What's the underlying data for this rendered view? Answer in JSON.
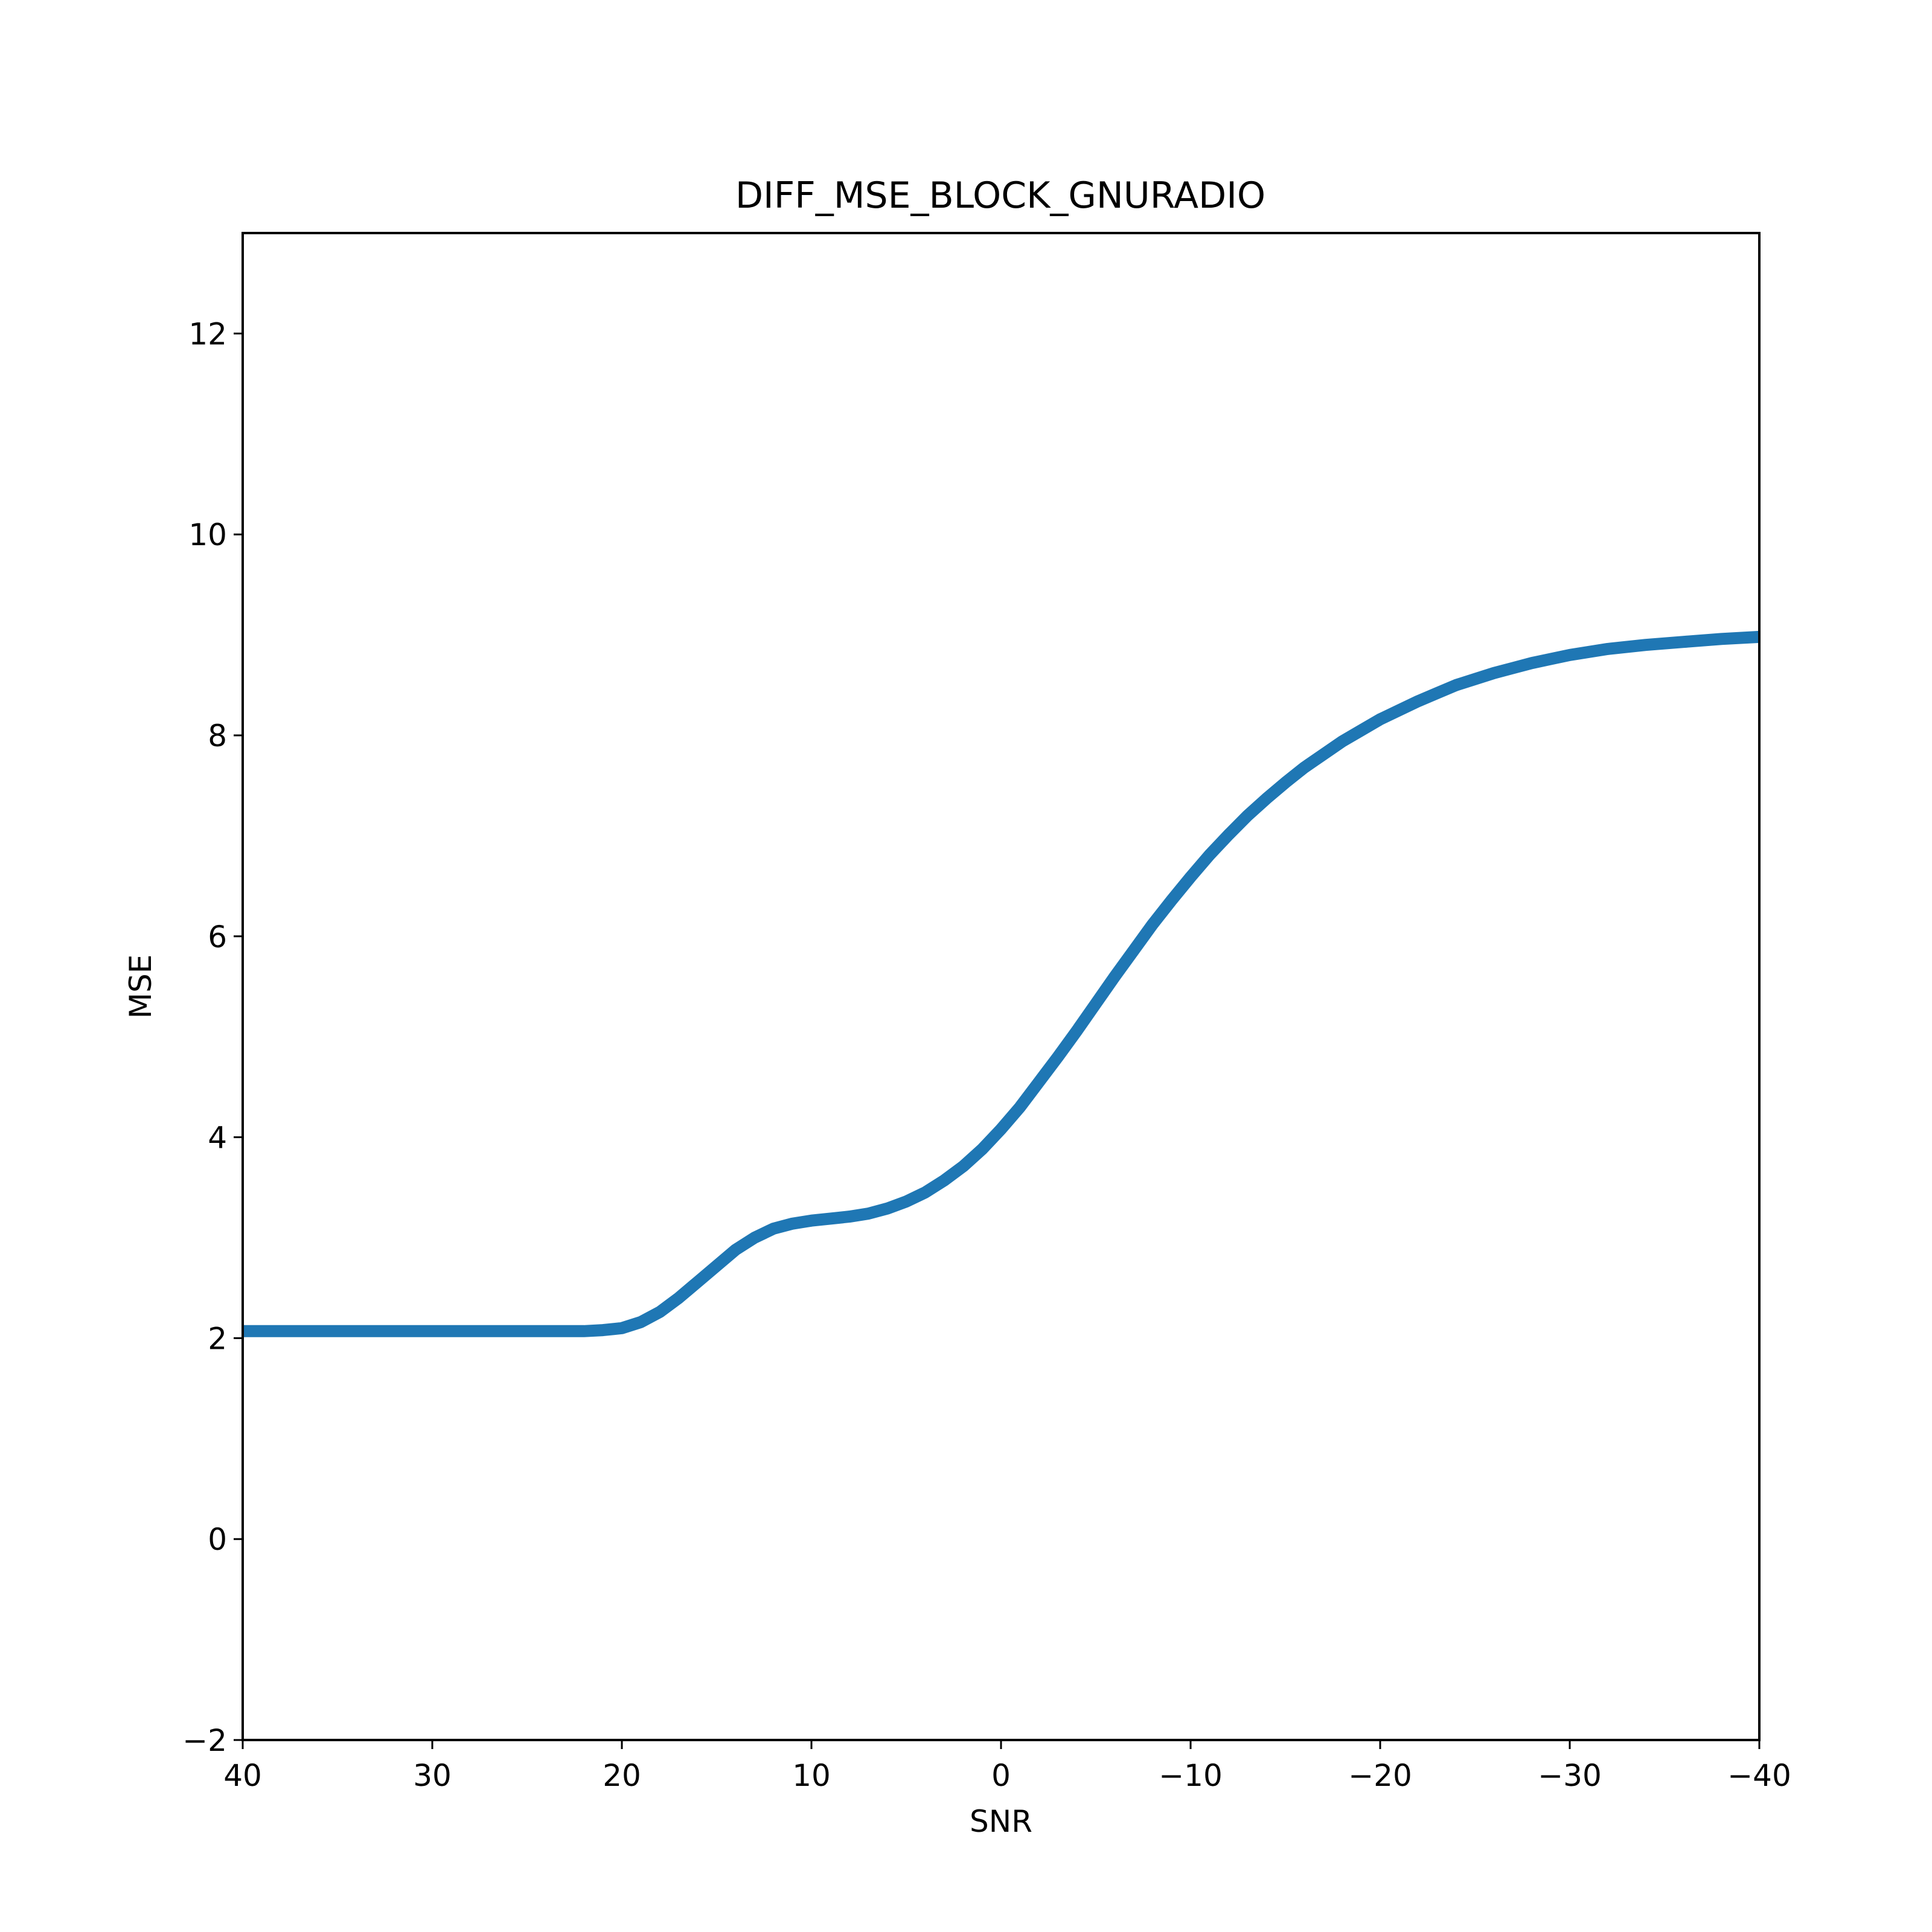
{
  "chart_data": {
    "type": "line",
    "title": "DIFF_MSE_BLOCK_GNURADIO",
    "xlabel": "SNR",
    "ylabel": "MSE",
    "xlim": [
      40,
      -40
    ],
    "ylim": [
      -2,
      13
    ],
    "x_inverted": true,
    "grid": false,
    "xticks": [
      {
        "value": 40,
        "label": "40"
      },
      {
        "value": 30,
        "label": "30"
      },
      {
        "value": 20,
        "label": "20"
      },
      {
        "value": 10,
        "label": "10"
      },
      {
        "value": 0,
        "label": "0"
      },
      {
        "value": -10,
        "label": "−10"
      },
      {
        "value": -20,
        "label": "−20"
      },
      {
        "value": -30,
        "label": "−30"
      },
      {
        "value": -40,
        "label": "−40"
      }
    ],
    "yticks": [
      {
        "value": -2,
        "label": "−2"
      },
      {
        "value": 0,
        "label": "0"
      },
      {
        "value": 2,
        "label": "2"
      },
      {
        "value": 4,
        "label": "4"
      },
      {
        "value": 6,
        "label": "6"
      },
      {
        "value": 8,
        "label": "8"
      },
      {
        "value": 10,
        "label": "10"
      },
      {
        "value": 12,
        "label": "12"
      }
    ],
    "series": [
      {
        "color": "#1f77b4",
        "x": [
          40,
          35,
          30,
          25,
          22,
          21,
          20,
          19,
          18,
          17,
          16,
          15,
          14,
          13,
          12,
          11,
          10,
          9,
          8,
          7,
          6,
          5,
          4,
          3,
          2,
          1,
          0,
          -1,
          -2,
          -3,
          -4,
          -5,
          -6,
          -7,
          -8,
          -9,
          -10,
          -11,
          -12,
          -13,
          -14,
          -15,
          -16,
          -17,
          -18,
          -19,
          -20,
          -21,
          -22,
          -23,
          -24,
          -25,
          -26,
          -27,
          -28,
          -29,
          -30,
          -32,
          -34,
          -36,
          -38,
          -40
        ],
        "y": [
          2.07,
          2.07,
          2.07,
          2.07,
          2.07,
          2.08,
          2.1,
          2.16,
          2.26,
          2.4,
          2.56,
          2.72,
          2.88,
          3.0,
          3.09,
          3.14,
          3.17,
          3.19,
          3.21,
          3.24,
          3.29,
          3.36,
          3.45,
          3.57,
          3.71,
          3.88,
          4.08,
          4.3,
          4.55,
          4.8,
          5.06,
          5.33,
          5.6,
          5.86,
          6.12,
          6.36,
          6.59,
          6.81,
          7.01,
          7.2,
          7.37,
          7.53,
          7.68,
          7.81,
          7.94,
          8.05,
          8.16,
          8.25,
          8.34,
          8.42,
          8.5,
          8.56,
          8.62,
          8.67,
          8.72,
          8.76,
          8.8,
          8.86,
          8.9,
          8.93,
          8.96,
          8.98
        ]
      }
    ]
  }
}
